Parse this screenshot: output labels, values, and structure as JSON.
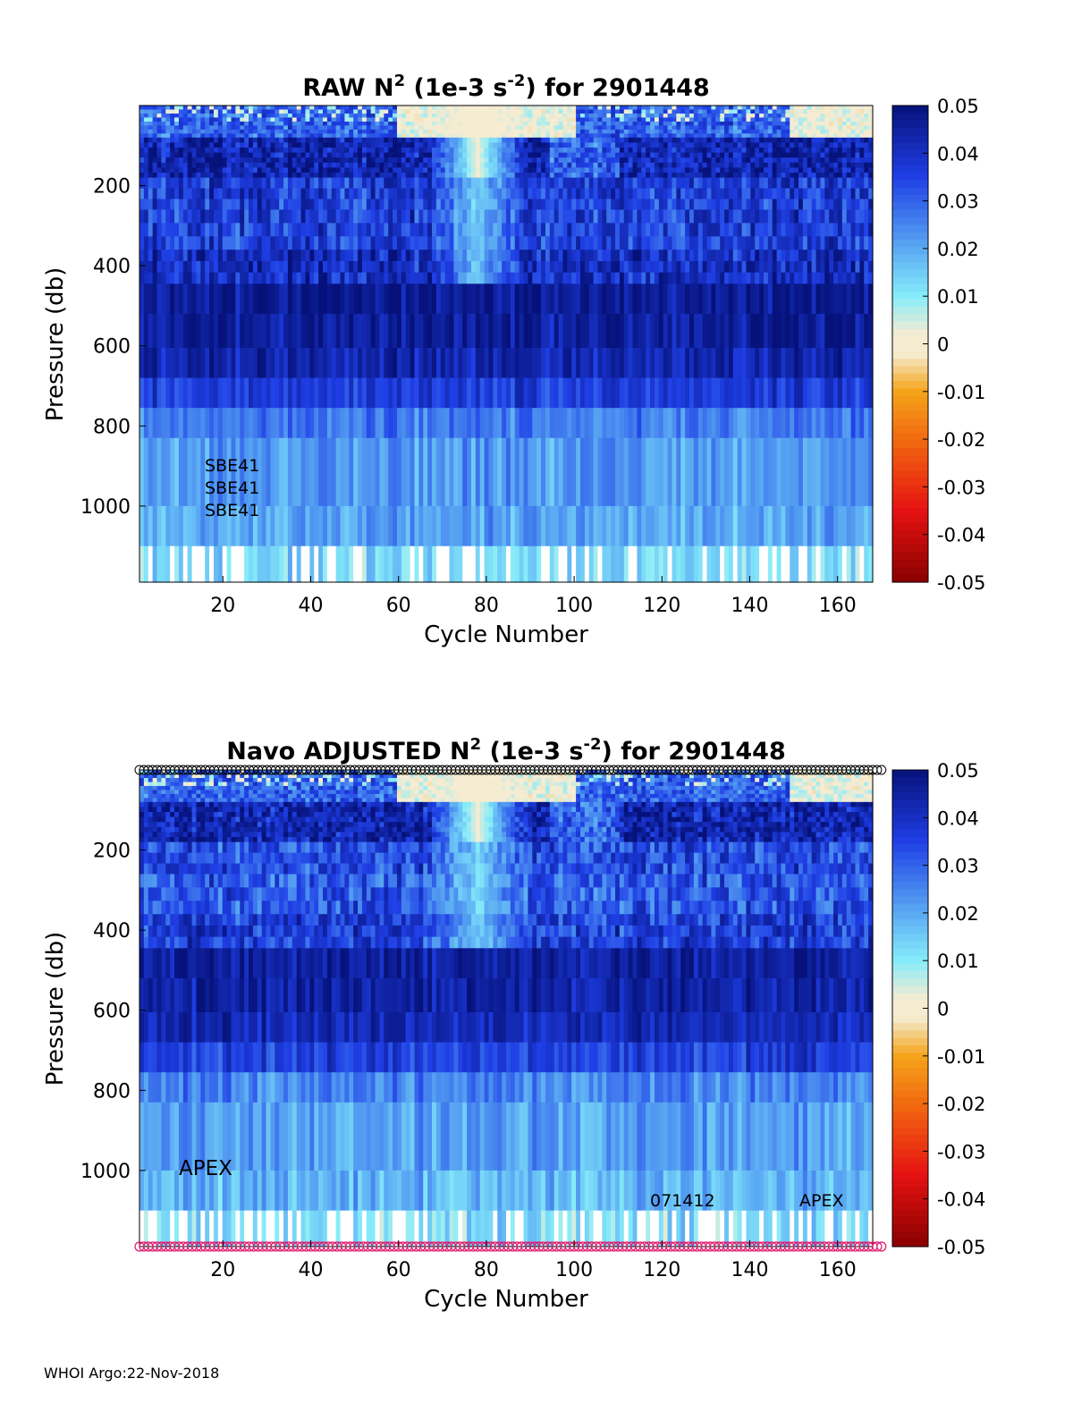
{
  "colors": {
    "deep_blue": "#06127a",
    "blue": "#1f3fe6",
    "light_blue": "#5aa9f3",
    "cyan": "#86ecfa",
    "zero": "#f5ecd2",
    "orange": "#f5a41a",
    "red": "#e51212",
    "dark_red": "#8a0000",
    "top_marker": "#000000",
    "bottom_marker": "#e0156b"
  },
  "chart_data": [
    {
      "type": "heatmap",
      "title_main": "RAW N",
      "title_sup1": "2",
      "title_mid": " (1e-3 s",
      "title_sup2": "-2",
      "title_end": ") for 2901448",
      "xlabel": "Cycle Number",
      "ylabel": "Pressure (db)",
      "xlim": [
        1,
        168
      ],
      "ylim": [
        1190,
        0
      ],
      "xticks": [
        20,
        40,
        60,
        80,
        100,
        120,
        140,
        160
      ],
      "yticks": [
        200,
        400,
        600,
        800,
        1000
      ],
      "clim": [
        -0.05,
        0.05
      ],
      "colorbar_ticks": [
        "0.05",
        "0.04",
        "0.03",
        "0.02",
        "0.01",
        "0",
        "-0.01",
        "-0.02",
        "-0.03",
        "-0.04",
        "-0.05"
      ],
      "annotations": [
        "SBE41",
        "SBE41",
        "SBE41"
      ],
      "pressure_bin_edges": [
        0,
        80,
        180,
        260,
        360,
        445,
        520,
        605,
        680,
        755,
        830,
        1000,
        1100,
        1190
      ],
      "bin_mean_values": [
        0.03,
        0.043,
        0.036,
        0.036,
        0.04,
        0.046,
        0.045,
        0.043,
        0.036,
        0.026,
        0.022,
        0.02,
        0.012
      ],
      "surface_light_cycles": [
        [
          60,
          100
        ],
        [
          150,
          168
        ]
      ]
    },
    {
      "type": "heatmap",
      "title_main": "Navo  ADJUSTED N",
      "title_sup1": "2",
      "title_mid": " (1e-3 s",
      "title_sup2": "-2",
      "title_end": ") for 2901448",
      "xlabel": "Cycle Number",
      "ylabel": "Pressure (db)",
      "xlim": [
        1,
        168
      ],
      "ylim": [
        1190,
        0
      ],
      "xticks": [
        20,
        40,
        60,
        80,
        100,
        120,
        140,
        160
      ],
      "yticks": [
        200,
        400,
        600,
        800,
        1000
      ],
      "clim": [
        -0.05,
        0.05
      ],
      "colorbar_ticks": [
        "0.05",
        "0.04",
        "0.03",
        "0.02",
        "0.01",
        "0",
        "-0.01",
        "-0.02",
        "-0.03",
        "-0.04",
        "-0.05"
      ],
      "annotations": [
        "APEX",
        "071412",
        "APEX"
      ],
      "pressure_bin_edges": [
        0,
        80,
        180,
        260,
        360,
        445,
        520,
        605,
        680,
        755,
        830,
        1000,
        1100,
        1190
      ],
      "bin_mean_values": [
        0.03,
        0.043,
        0.034,
        0.032,
        0.036,
        0.045,
        0.044,
        0.042,
        0.036,
        0.025,
        0.021,
        0.018,
        0.012
      ],
      "surface_light_cycles": [
        [
          60,
          100
        ],
        [
          150,
          168
        ]
      ],
      "top_markers": "black open circles at every cycle",
      "bottom_markers": "magenta open circles at every cycle"
    }
  ],
  "footer": "WHOI Argo:22-Nov-2018"
}
